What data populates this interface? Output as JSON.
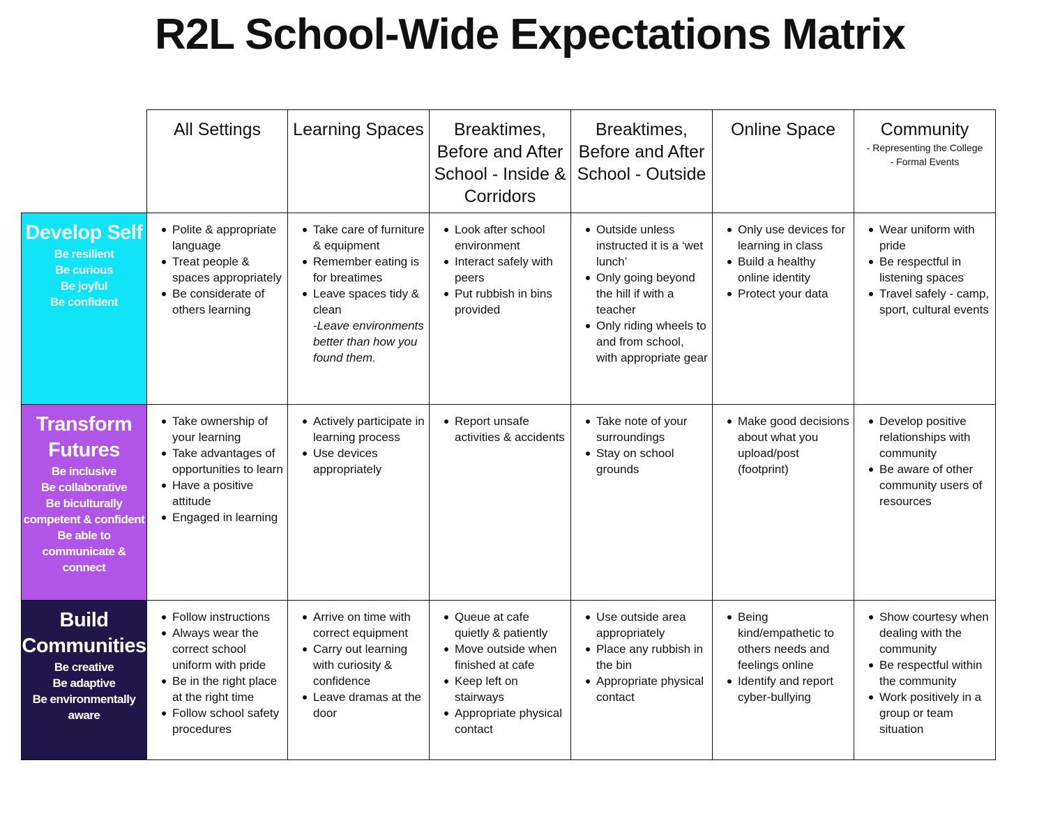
{
  "title": "R2L School-Wide Expectations Matrix",
  "colors": {
    "develop_self": "#12e4f8",
    "transform_futures": "#b154e8",
    "build_communities": "#21164a"
  },
  "headers": [
    {
      "title": "All Settings"
    },
    {
      "title": "Learning Spaces"
    },
    {
      "title": "Breaktimes, Before and After School  - Inside & Corridors"
    },
    {
      "title": "Breaktimes, Before and After School - Outside"
    },
    {
      "title": "Online Space"
    },
    {
      "title": "Community",
      "sub1": "- Representing the College",
      "sub2": "- Formal Events"
    }
  ],
  "rows": [
    {
      "title": "Develop Self",
      "values": [
        "Be resilient",
        "Be curious",
        "Be joyful",
        "Be confident"
      ],
      "cells": [
        {
          "items": [
            "Polite & appropriate language",
            "Treat people & spaces appropriately",
            "Be considerate of others learning"
          ]
        },
        {
          "items": [
            "Take care of furniture & equipment",
            "Remember eating is for breatimes",
            "Leave spaces tidy & clean"
          ],
          "note": "-Leave environments better than how you found them."
        },
        {
          "items": [
            "Look after school environment",
            "Interact safely with peers",
            "Put rubbish in bins provided"
          ]
        },
        {
          "items": [
            "Outside unless instructed it is a ‘wet lunch’",
            "Only going beyond the hill if with a teacher",
            "Only riding wheels to and from school, with appropriate gear"
          ]
        },
        {
          "items": [
            "Only use devices for learning in class",
            "Build a healthy online identity",
            "Protect your data"
          ]
        },
        {
          "items": [
            "Wear uniform with pride",
            "Be respectful in listening spaces",
            "Travel safely - camp, sport, cultural events"
          ]
        }
      ]
    },
    {
      "title": "Transform Futures",
      "values": [
        "Be inclusive",
        "Be collaborative",
        "Be biculturally competent & confident",
        "Be able to communicate & connect"
      ],
      "cells": [
        {
          "items": [
            "Take ownership of your learning",
            "Take advantages of opportunities to learn",
            "Have a positive attitude",
            "Engaged in learning"
          ]
        },
        {
          "items": [
            "Actively participate in learning process",
            "Use devices appropriately"
          ]
        },
        {
          "items": [
            "Report unsafe activities & accidents"
          ]
        },
        {
          "items": [
            "Take note of your surroundings",
            "Stay on school grounds"
          ]
        },
        {
          "items": [
            "Make good decisions about what you upload/post (footprint)"
          ]
        },
        {
          "items": [
            "Develop positive relationships with community",
            "Be aware of other community users of resources"
          ]
        }
      ]
    },
    {
      "title": "Build Communities",
      "values": [
        "Be creative",
        "Be adaptive",
        "Be environmentally aware"
      ],
      "cells": [
        {
          "items": [
            "Follow instructions",
            "Always wear the correct school uniform with pride",
            "Be in the right place at the right time",
            "Follow school safety procedures"
          ]
        },
        {
          "items": [
            "Arrive on time with correct equipment",
            "Carry out learning with curiosity & confidence",
            "Leave dramas at the door"
          ]
        },
        {
          "items": [
            "Queue at cafe quietly & patiently",
            "Move outside when finished at cafe",
            "Keep left on stairways",
            "Appropriate physical contact"
          ]
        },
        {
          "items": [
            "Use outside area appropriately",
            "Place any rubbish in the bin",
            "Appropriate physical contact"
          ]
        },
        {
          "items": [
            "Being kind/empathetic to others needs and feelings online",
            "Identify and report cyber-bullying"
          ]
        },
        {
          "items": [
            "Show courtesy when dealing with the community",
            "Be respectful within the community",
            "Work positively in a group or team situation"
          ]
        }
      ]
    }
  ]
}
